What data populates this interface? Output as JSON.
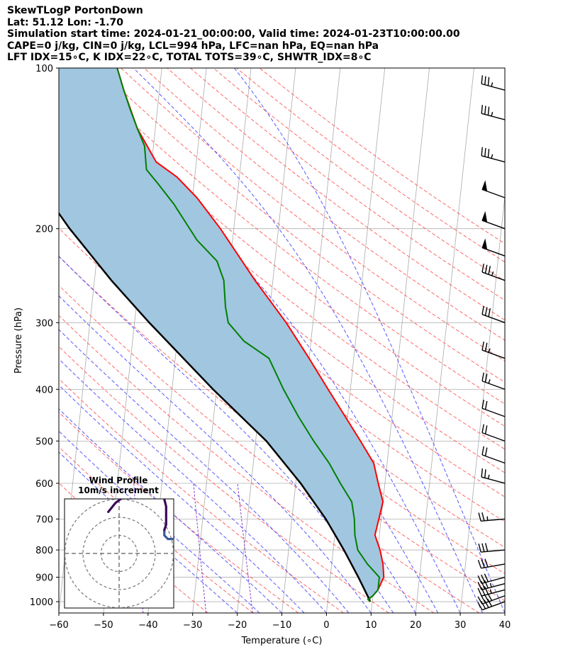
{
  "header": {
    "line1": "SkewTLogP PortonDown",
    "line2": "Lat: 51.12   Lon: -1.70",
    "line3": "Simulation start time: 2024-01-21_00:00:00, Valid time: 2024-01-23T10:00:00.00",
    "line4": "CAPE=0 j/kg, CIN=0 j/kg, LCL=994 hPa, LFC=nan hPa, EQ=nan hPa",
    "line5": "LFT IDX=15∘C, K IDX=22∘C, TOTAL TOTS=39∘C, SHWTR_IDX=8∘C"
  },
  "colors": {
    "temperature": "#ff0000",
    "dewpoint": "#008000",
    "parcel": "#000000",
    "shade": "#a1c6e0",
    "dry_adiabat": "#ff4c4c",
    "moist_adiabat": "#3a3aff",
    "mixing_ratio": "#8a3ec9",
    "isotherm": "#aaaaaa",
    "hodograph_lower": "#3a5a9a",
    "hodograph_upper": "#3b0a57"
  },
  "chart_data": [
    {
      "type": "line",
      "subtype": "skew-T log-P",
      "title": "",
      "xlabel": "Temperature (∘C)",
      "ylabel": "Pressure (hPa)",
      "xlim": [
        -60,
        40
      ],
      "ylim": [
        1050,
        100
      ],
      "yscale": "log",
      "xticks": [
        "−60",
        "−50",
        "−40",
        "−30",
        "−20",
        "−10",
        "0",
        "10",
        "20",
        "30",
        "40"
      ],
      "yticks": [
        "1000",
        "900",
        "800",
        "700",
        "600",
        "500",
        "400",
        "300",
        "200",
        "100"
      ],
      "grid": true,
      "series": [
        {
          "role": "temperature",
          "points": [
            [
              1000,
              9.5
            ],
            [
              990,
              9
            ],
            [
              975,
              10
            ],
            [
              950,
              11
            ],
            [
              900,
              12
            ],
            [
              850,
              11.5
            ],
            [
              800,
              10.5
            ],
            [
              750,
              9
            ],
            [
              700,
              9.5
            ],
            [
              650,
              10
            ],
            [
              600,
              8.5
            ],
            [
              550,
              7
            ],
            [
              500,
              3.5
            ],
            [
              450,
              -0.5
            ],
            [
              400,
              -5
            ],
            [
              350,
              -10
            ],
            [
              300,
              -16
            ],
            [
              250,
              -24
            ],
            [
              200,
              -33
            ],
            [
              175,
              -39
            ],
            [
              160,
              -44
            ],
            [
              150,
              -49
            ],
            [
              130,
              -54
            ],
            [
              110,
              -58
            ],
            [
              100,
              -60
            ]
          ]
        },
        {
          "role": "dewpoint",
          "points": [
            [
              1000,
              9.5
            ],
            [
              990,
              9
            ],
            [
              975,
              10
            ],
            [
              950,
              11
            ],
            [
              900,
              11
            ],
            [
              850,
              8
            ],
            [
              800,
              5.5
            ],
            [
              750,
              4.5
            ],
            [
              700,
              4
            ],
            [
              650,
              3
            ],
            [
              600,
              0
            ],
            [
              550,
              -3
            ],
            [
              500,
              -7
            ],
            [
              450,
              -11
            ],
            [
              400,
              -15
            ],
            [
              350,
              -19
            ],
            [
              325,
              -25
            ],
            [
              300,
              -29
            ],
            [
              280,
              -30
            ],
            [
              250,
              -31
            ],
            [
              230,
              -33
            ],
            [
              210,
              -38
            ],
            [
              180,
              -44
            ],
            [
              165,
              -48
            ],
            [
              155,
              -51
            ],
            [
              140,
              -52
            ],
            [
              130,
              -54
            ],
            [
              120,
              -56
            ],
            [
              110,
              -58
            ],
            [
              100,
              -60
            ]
          ]
        },
        {
          "role": "parcel",
          "points": [
            [
              1000,
              9.5
            ],
            [
              994,
              9.4
            ],
            [
              900,
              6.3
            ],
            [
              800,
              2.4
            ],
            [
              700,
              -2.4
            ],
            [
              600,
              -8.9
            ],
            [
              500,
              -17.6
            ],
            [
              400,
              -30.8
            ],
            [
              300,
              -46.7
            ],
            [
              250,
              -56.2
            ],
            [
              200,
              -66.8
            ],
            [
              150,
              -79
            ],
            [
              100,
              -95
            ]
          ]
        }
      ],
      "wind_barbs": [
        {
          "p": 1000,
          "speed": 40,
          "dir": 250
        },
        {
          "p": 975,
          "speed": 40,
          "dir": 250
        },
        {
          "p": 950,
          "speed": 35,
          "dir": 255
        },
        {
          "p": 925,
          "speed": 35,
          "dir": 255
        },
        {
          "p": 900,
          "speed": 30,
          "dir": 255
        },
        {
          "p": 850,
          "speed": 30,
          "dir": 260
        },
        {
          "p": 800,
          "speed": 30,
          "dir": 265
        },
        {
          "p": 700,
          "speed": 25,
          "dir": 265
        },
        {
          "p": 600,
          "speed": 25,
          "dir": 285
        },
        {
          "p": 550,
          "speed": 20,
          "dir": 290
        },
        {
          "p": 500,
          "speed": 20,
          "dir": 290
        },
        {
          "p": 450,
          "speed": 20,
          "dir": 290
        },
        {
          "p": 400,
          "speed": 25,
          "dir": 290
        },
        {
          "p": 350,
          "speed": 25,
          "dir": 290
        },
        {
          "p": 300,
          "speed": 30,
          "dir": 290
        },
        {
          "p": 250,
          "speed": 35,
          "dir": 290
        },
        {
          "p": 225,
          "speed": 50,
          "dir": 290
        },
        {
          "p": 200,
          "speed": 50,
          "dir": 290
        },
        {
          "p": 175,
          "speed": 50,
          "dir": 290
        },
        {
          "p": 150,
          "speed": 35,
          "dir": 285
        },
        {
          "p": 125,
          "speed": 35,
          "dir": 285
        },
        {
          "p": 110,
          "speed": 35,
          "dir": 285
        }
      ]
    },
    {
      "type": "line",
      "subtype": "hodograph",
      "title": "Wind Profile",
      "subtitle": "10m/s increment",
      "rings": [
        10,
        20,
        30
      ],
      "lower_points": [
        [
          40,
          8
        ],
        [
          35,
          7
        ],
        [
          31,
          8
        ],
        [
          27,
          8
        ],
        [
          25,
          10
        ],
        [
          25,
          13
        ]
      ],
      "upper_points": [
        [
          25,
          13
        ],
        [
          26,
          16
        ],
        [
          26,
          21
        ],
        [
          26,
          26
        ],
        [
          25,
          30
        ],
        [
          22,
          33
        ],
        [
          15,
          35
        ],
        [
          7,
          34
        ],
        [
          2,
          31
        ],
        [
          -2,
          28
        ],
        [
          -6,
          23
        ]
      ]
    }
  ]
}
